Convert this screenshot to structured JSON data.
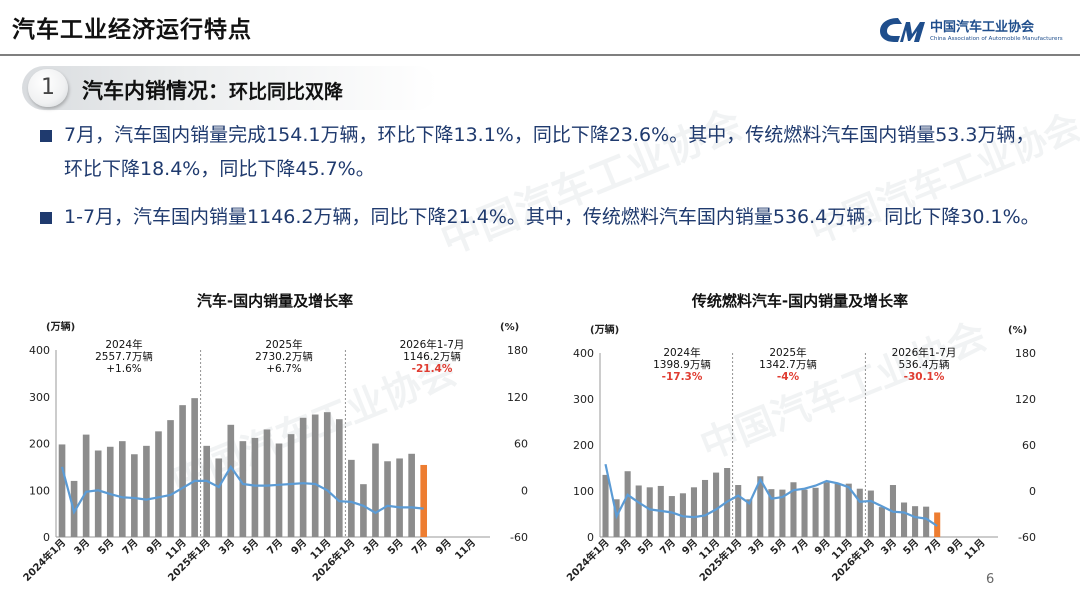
{
  "header": {
    "title": "汽车工业经济运行特点",
    "logo_cn": "中国汽车工业协会",
    "logo_en": "China Association of Automobile Manufacturers",
    "accent": "#1f4e8c"
  },
  "section": {
    "number": "1",
    "title": "汽车内销情况：",
    "subtitle": "环比同比双降"
  },
  "bullets": [
    "7月，汽车国内销量完成154.1万辆，环比下降13.1%，同比下降23.6%。其中，传统燃料汽车国内销量53.3万辆，环比下降18.4%，同比下降45.7%。",
    "1-7月，汽车国内销量1146.2万辆，同比下降21.4%。其中，传统燃料汽车国内销量536.4万辆，同比下降30.1%。"
  ],
  "colors": {
    "bar": "#8c8c8c",
    "bar_highlight": "#ed7d31",
    "line": "#5b9bd5",
    "negative_text": "#e03c31",
    "text_blue": "#1f3a6e"
  },
  "chart_data": [
    {
      "type": "bar",
      "title": "汽车-国内销量及增长率",
      "y_unit": "(万辆)",
      "y2_unit": "(%)",
      "ylim": [
        0,
        400
      ],
      "yticks": [
        0,
        100,
        200,
        300,
        400
      ],
      "y2lim": [
        -60,
        180
      ],
      "y2ticks": [
        -60,
        0,
        60,
        120,
        180
      ],
      "x_labels": [
        "2024年1月",
        "3月",
        "5月",
        "7月",
        "9月",
        "11月",
        "2025年1月",
        "3月",
        "5月",
        "7月",
        "9月",
        "11月",
        "2026年1月",
        "3月",
        "5月",
        "7月",
        "9月",
        "11月"
      ],
      "bar_values": [
        198,
        120,
        219,
        185,
        193,
        205,
        177,
        195,
        226,
        250,
        282,
        297,
        195,
        168,
        240,
        205,
        212,
        230,
        200,
        220,
        255,
        262,
        267,
        252,
        165,
        113,
        200,
        162,
        168,
        178,
        154.1
      ],
      "growth_rate": [
        30,
        -28,
        -2,
        0,
        -5,
        -9,
        -10,
        -12,
        -9,
        -6,
        3,
        12,
        12,
        4,
        30,
        8,
        6,
        6,
        7,
        8,
        9,
        8,
        0,
        -14,
        -15,
        -20,
        -29,
        -20,
        -22,
        -22,
        -23.6
      ],
      "highlight_index": 30,
      "annotations": [
        {
          "period": "2024年",
          "value": "2557.7万辆",
          "change": "+1.6%",
          "negative": false
        },
        {
          "period": "2025年",
          "value": "2730.2万辆",
          "change": "+6.7%",
          "negative": false
        },
        {
          "period": "2026年1-7月",
          "value": "1146.2万辆",
          "change": "-21.4%",
          "negative": true
        }
      ]
    },
    {
      "type": "bar",
      "title": "传统燃料汽车-国内销量及增长率",
      "y_unit": "(万辆)",
      "y2_unit": "(%)",
      "ylim": [
        0,
        400
      ],
      "yticks": [
        0,
        100,
        200,
        300,
        400
      ],
      "y2lim": [
        -60,
        180
      ],
      "y2ticks": [
        -60,
        0,
        60,
        120,
        180
      ],
      "x_labels": [
        "2024年1月",
        "3月",
        "5月",
        "7月",
        "9月",
        "11月",
        "2025年1月",
        "3月",
        "5月",
        "7月",
        "9月",
        "11月",
        "2026年1月",
        "3月",
        "5月",
        "7月",
        "9月",
        "11月"
      ],
      "bar_values": [
        135,
        82,
        143,
        112,
        108,
        111,
        89,
        95,
        108,
        124,
        140,
        150,
        113,
        82,
        132,
        104,
        103,
        119,
        103,
        107,
        119,
        116,
        116,
        105,
        101,
        65,
        113,
        75,
        67,
        66,
        53.3
      ],
      "growth_rate": [
        35,
        -33,
        -5,
        -15,
        -24,
        -26,
        -28,
        -33,
        -34,
        -32,
        -24,
        -14,
        -6,
        -16,
        15,
        -10,
        -8,
        1,
        3,
        7,
        13,
        10,
        5,
        -14,
        -13,
        -20,
        -27,
        -28,
        -34,
        -36,
        -45.7
      ],
      "highlight_index": 30,
      "annotations": [
        {
          "period": "2024年",
          "value": "1398.9万辆",
          "change": "-17.3%",
          "negative": true
        },
        {
          "period": "2025年",
          "value": "1342.7万辆",
          "change": "-4%",
          "negative": true
        },
        {
          "period": "2026年1-7月",
          "value": "536.4万辆",
          "change": "-30.1%",
          "negative": true
        }
      ]
    }
  ],
  "page_number": "6",
  "watermark": {
    "cn": "中国汽车工业协会",
    "en": "China Association of Automobile Manufacturers"
  }
}
